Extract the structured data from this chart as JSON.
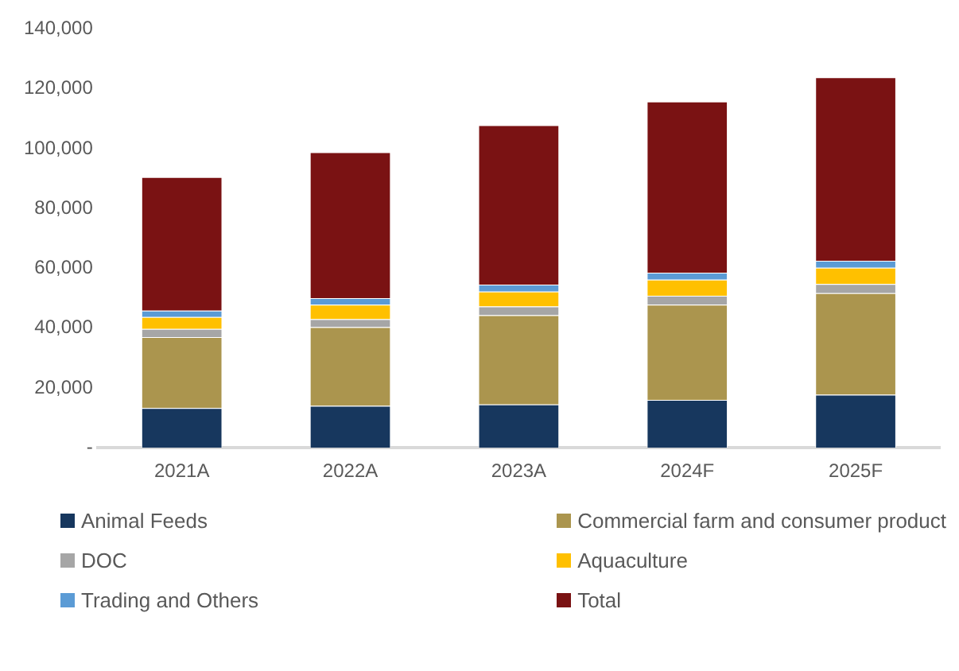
{
  "chart_data": {
    "type": "bar",
    "stacked": true,
    "categories": [
      "2021A",
      "2022A",
      "2023A",
      "2024F",
      "2025F"
    ],
    "series": [
      {
        "name": "Animal Feeds",
        "color": "#17375e",
        "values": [
          13300,
          14000,
          14500,
          16000,
          17700
        ]
      },
      {
        "name": "Commercial farm and consumer product",
        "color": "#ab954e",
        "values": [
          23700,
          26300,
          29800,
          31800,
          34000
        ]
      },
      {
        "name": "DOC",
        "color": "#a6a6a6",
        "values": [
          2700,
          2700,
          2900,
          3000,
          3000
        ]
      },
      {
        "name": "Aquaculture",
        "color": "#ffc000",
        "values": [
          4000,
          4800,
          5000,
          5400,
          5500
        ]
      },
      {
        "name": "Trading and Others",
        "color": "#5b9bd5",
        "values": [
          2100,
          2200,
          2300,
          2300,
          2300
        ]
      },
      {
        "name": "Total",
        "color": "#7a1213",
        "values": [
          44700,
          48800,
          53300,
          57200,
          61300
        ]
      }
    ],
    "ylim": [
      0,
      140000
    ],
    "yticks": [
      {
        "value": 0,
        "label": "-"
      },
      {
        "value": 20000,
        "label": "20,000"
      },
      {
        "value": 40000,
        "label": "40,000"
      },
      {
        "value": 60000,
        "label": "60,000"
      },
      {
        "value": 80000,
        "label": "80,000"
      },
      {
        "value": 100000,
        "label": "100,000"
      },
      {
        "value": 120000,
        "label": "120,000"
      },
      {
        "value": 140000,
        "label": "140,000"
      }
    ],
    "grid": false,
    "legend": "bottom"
  }
}
